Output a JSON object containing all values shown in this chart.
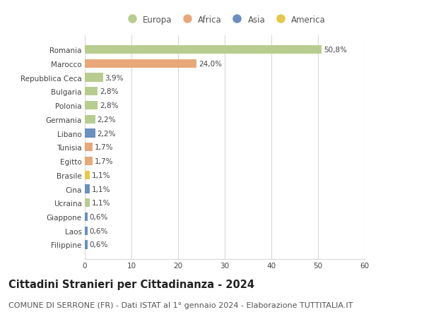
{
  "categories": [
    "Filippine",
    "Laos",
    "Giappone",
    "Ucraina",
    "Cina",
    "Brasile",
    "Egitto",
    "Tunisia",
    "Libano",
    "Germania",
    "Polonia",
    "Bulgaria",
    "Repubblica Ceca",
    "Marocco",
    "Romania"
  ],
  "values": [
    0.6,
    0.6,
    0.6,
    1.1,
    1.1,
    1.1,
    1.7,
    1.7,
    2.2,
    2.2,
    2.8,
    2.8,
    3.9,
    24.0,
    50.8
  ],
  "labels": [
    "0,6%",
    "0,6%",
    "0,6%",
    "1,1%",
    "1,1%",
    "1,1%",
    "1,7%",
    "1,7%",
    "2,2%",
    "2,2%",
    "2,8%",
    "2,8%",
    "3,9%",
    "24,0%",
    "50,8%"
  ],
  "colors": [
    "#6b8fbf",
    "#6b8fbf",
    "#6b8fbf",
    "#b8cc90",
    "#6b8fbf",
    "#e8c84a",
    "#e8a878",
    "#e8a878",
    "#6b8fbf",
    "#b8cc90",
    "#b8cc90",
    "#b8cc90",
    "#b8cc90",
    "#e8a878",
    "#b8cc90"
  ],
  "legend_labels": [
    "Europa",
    "Africa",
    "Asia",
    "America"
  ],
  "legend_colors": [
    "#b8cc90",
    "#e8a878",
    "#6b8fbf",
    "#e8c84a"
  ],
  "title": "Cittadini Stranieri per Cittadinanza - 2024",
  "subtitle": "COMUNE DI SERRONE (FR) - Dati ISTAT al 1° gennaio 2024 - Elaborazione TUTTITALIA.IT",
  "xlim": [
    0,
    60
  ],
  "xticks": [
    0,
    10,
    20,
    30,
    40,
    50,
    60
  ],
  "background_color": "#ffffff",
  "grid_color": "#d8d8d8",
  "bar_height": 0.62,
  "title_fontsize": 10.5,
  "subtitle_fontsize": 8,
  "label_fontsize": 7.5,
  "tick_fontsize": 7.5,
  "legend_fontsize": 8.5
}
